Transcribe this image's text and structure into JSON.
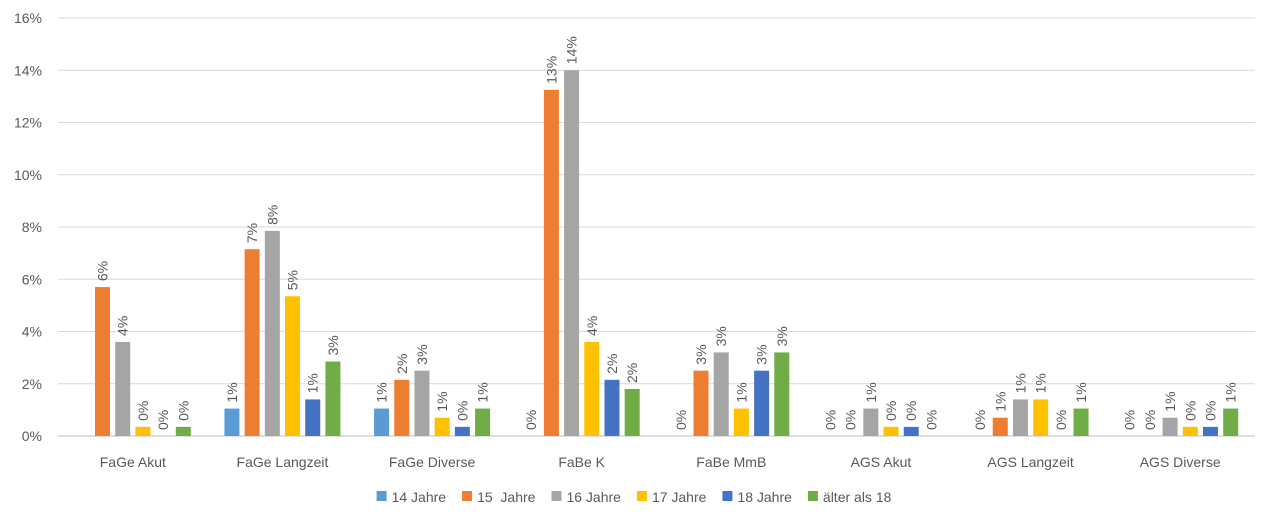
{
  "chart_data": {
    "type": "bar",
    "categories": [
      "FaGe Akut",
      "FaGe Langzeit",
      "FaGe Diverse",
      "FaBe K",
      "FaBe MmB",
      "AGS Akut",
      "AGS Langzeit",
      "AGS Diverse"
    ],
    "y_ticks": [
      "0%",
      "2%",
      "4%",
      "6%",
      "8%",
      "10%",
      "12%",
      "14%",
      "16%"
    ],
    "ylim": [
      0,
      16
    ],
    "grid": true,
    "legend_position": "bottom",
    "series": [
      {
        "name": "14 Jahre",
        "color": "#5B9BD5",
        "values": [
          0,
          1.05,
          1.05,
          0,
          0,
          0,
          0,
          0
        ],
        "labels": [
          "",
          "1%",
          "1%",
          "0%",
          "0%",
          "0%",
          "0%",
          "0%"
        ]
      },
      {
        "name": "15  Jahre",
        "color": "#ED7D31",
        "values": [
          5.7,
          7.15,
          2.15,
          13.25,
          2.5,
          0,
          0.7,
          0
        ],
        "labels": [
          "6%",
          "7%",
          "2%",
          "13%",
          "3%",
          "0%",
          "1%",
          "0%"
        ]
      },
      {
        "name": "16 Jahre",
        "color": "#A5A5A5",
        "values": [
          3.6,
          7.85,
          2.5,
          14.0,
          3.2,
          1.05,
          1.4,
          0.7
        ],
        "labels": [
          "4%",
          "8%",
          "3%",
          "14%",
          "3%",
          "1%",
          "1%",
          "1%"
        ]
      },
      {
        "name": "17 Jahre",
        "color": "#FFC000",
        "values": [
          0.35,
          5.35,
          0.7,
          3.6,
          1.05,
          0.35,
          1.4,
          0.35
        ],
        "labels": [
          "0%",
          "5%",
          "1%",
          "4%",
          "1%",
          "0%",
          "1%",
          "0%"
        ]
      },
      {
        "name": "18 Jahre",
        "color": "#4472C4",
        "values": [
          0,
          1.4,
          0.35,
          2.15,
          2.5,
          0.35,
          0,
          0.35
        ],
        "labels": [
          "0%",
          "1%",
          "0%",
          "2%",
          "3%",
          "0%",
          "0%",
          "0%"
        ]
      },
      {
        "name": "älter als 18",
        "color": "#70AD47",
        "values": [
          0.35,
          2.85,
          1.05,
          1.8,
          3.2,
          0,
          1.05,
          1.05
        ],
        "labels": [
          "0%",
          "3%",
          "1%",
          "2%",
          "3%",
          "0%",
          "1%",
          "1%"
        ]
      }
    ]
  }
}
